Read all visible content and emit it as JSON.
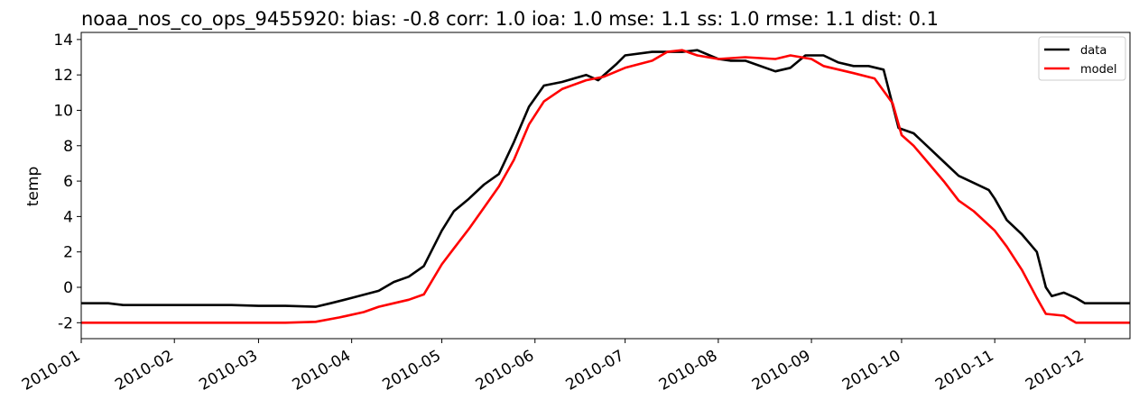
{
  "chart_data": {
    "type": "line",
    "title": "noaa_nos_co_ops_9455920: bias: -0.8  corr: 1.0  ioa: 1.0  mse: 1.1  ss: 1.0  rmse: 1.1  dist: 0.1",
    "xlabel": "",
    "ylabel": "temp",
    "xlim": [
      "2010-01-01",
      "2010-12-16"
    ],
    "ylim": [
      -2.9,
      14.4
    ],
    "yticks": [
      -2,
      0,
      2,
      4,
      6,
      8,
      10,
      12,
      14
    ],
    "xticks": [
      "2010-01",
      "2010-02",
      "2010-03",
      "2010-04",
      "2010-05",
      "2010-06",
      "2010-07",
      "2010-08",
      "2010-09",
      "2010-10",
      "2010-11",
      "2010-12"
    ],
    "grid": false,
    "legend": {
      "position": "top-right",
      "entries": [
        "data",
        "model"
      ]
    },
    "series": [
      {
        "name": "data",
        "color": "#000000",
        "points": [
          [
            "2010-01-01",
            -0.9
          ],
          [
            "2010-01-10",
            -0.9
          ],
          [
            "2010-01-15",
            -1.0
          ],
          [
            "2010-02-01",
            -1.0
          ],
          [
            "2010-02-20",
            -1.0
          ],
          [
            "2010-03-01",
            -1.05
          ],
          [
            "2010-03-10",
            -1.05
          ],
          [
            "2010-03-20",
            -1.1
          ],
          [
            "2010-03-25",
            -0.9
          ],
          [
            "2010-04-01",
            -0.6
          ],
          [
            "2010-04-10",
            -0.2
          ],
          [
            "2010-04-15",
            0.3
          ],
          [
            "2010-04-20",
            0.6
          ],
          [
            "2010-04-25",
            1.2
          ],
          [
            "2010-05-01",
            3.2
          ],
          [
            "2010-05-05",
            4.3
          ],
          [
            "2010-05-10",
            5.0
          ],
          [
            "2010-05-15",
            5.8
          ],
          [
            "2010-05-20",
            6.4
          ],
          [
            "2010-05-25",
            8.2
          ],
          [
            "2010-05-30",
            10.2
          ],
          [
            "2010-06-04",
            11.4
          ],
          [
            "2010-06-10",
            11.6
          ],
          [
            "2010-06-18",
            12.0
          ],
          [
            "2010-06-22",
            11.7
          ],
          [
            "2010-06-28",
            12.6
          ],
          [
            "2010-07-01",
            13.1
          ],
          [
            "2010-07-10",
            13.3
          ],
          [
            "2010-07-20",
            13.3
          ],
          [
            "2010-07-25",
            13.4
          ],
          [
            "2010-08-01",
            12.9
          ],
          [
            "2010-08-05",
            12.8
          ],
          [
            "2010-08-10",
            12.8
          ],
          [
            "2010-08-20",
            12.2
          ],
          [
            "2010-08-25",
            12.4
          ],
          [
            "2010-08-30",
            13.1
          ],
          [
            "2010-09-05",
            13.1
          ],
          [
            "2010-09-10",
            12.7
          ],
          [
            "2010-09-15",
            12.5
          ],
          [
            "2010-09-20",
            12.5
          ],
          [
            "2010-09-25",
            12.3
          ],
          [
            "2010-09-30",
            9.0
          ],
          [
            "2010-10-05",
            8.7
          ],
          [
            "2010-10-10",
            7.9
          ],
          [
            "2010-10-15",
            7.1
          ],
          [
            "2010-10-20",
            6.3
          ],
          [
            "2010-10-25",
            5.9
          ],
          [
            "2010-10-30",
            5.5
          ],
          [
            "2010-11-01",
            5.0
          ],
          [
            "2010-11-05",
            3.8
          ],
          [
            "2010-11-10",
            3.0
          ],
          [
            "2010-11-15",
            2.0
          ],
          [
            "2010-11-18",
            0.0
          ],
          [
            "2010-11-20",
            -0.5
          ],
          [
            "2010-11-24",
            -0.3
          ],
          [
            "2010-11-28",
            -0.6
          ],
          [
            "2010-12-01",
            -0.9
          ],
          [
            "2010-12-16",
            -0.9
          ]
        ]
      },
      {
        "name": "model",
        "color": "#ff0000",
        "points": [
          [
            "2010-01-01",
            -2.0
          ],
          [
            "2010-02-01",
            -2.0
          ],
          [
            "2010-03-01",
            -2.0
          ],
          [
            "2010-03-10",
            -2.0
          ],
          [
            "2010-03-20",
            -1.95
          ],
          [
            "2010-03-28",
            -1.7
          ],
          [
            "2010-04-05",
            -1.4
          ],
          [
            "2010-04-10",
            -1.1
          ],
          [
            "2010-04-15",
            -0.9
          ],
          [
            "2010-04-20",
            -0.7
          ],
          [
            "2010-04-25",
            -0.4
          ],
          [
            "2010-05-01",
            1.3
          ],
          [
            "2010-05-05",
            2.2
          ],
          [
            "2010-05-10",
            3.3
          ],
          [
            "2010-05-15",
            4.5
          ],
          [
            "2010-05-20",
            5.7
          ],
          [
            "2010-05-25",
            7.2
          ],
          [
            "2010-05-30",
            9.2
          ],
          [
            "2010-06-04",
            10.5
          ],
          [
            "2010-06-10",
            11.2
          ],
          [
            "2010-06-18",
            11.7
          ],
          [
            "2010-06-24",
            11.9
          ],
          [
            "2010-07-01",
            12.4
          ],
          [
            "2010-07-10",
            12.8
          ],
          [
            "2010-07-15",
            13.3
          ],
          [
            "2010-07-20",
            13.4
          ],
          [
            "2010-07-25",
            13.1
          ],
          [
            "2010-08-01",
            12.9
          ],
          [
            "2010-08-10",
            13.0
          ],
          [
            "2010-08-20",
            12.9
          ],
          [
            "2010-08-25",
            13.1
          ],
          [
            "2010-09-01",
            12.9
          ],
          [
            "2010-09-05",
            12.5
          ],
          [
            "2010-09-15",
            12.1
          ],
          [
            "2010-09-22",
            11.8
          ],
          [
            "2010-09-28",
            10.4
          ],
          [
            "2010-10-01",
            8.6
          ],
          [
            "2010-10-05",
            8.0
          ],
          [
            "2010-10-10",
            7.0
          ],
          [
            "2010-10-15",
            6.0
          ],
          [
            "2010-10-20",
            4.9
          ],
          [
            "2010-10-25",
            4.3
          ],
          [
            "2010-11-01",
            3.2
          ],
          [
            "2010-11-05",
            2.3
          ],
          [
            "2010-11-10",
            1.0
          ],
          [
            "2010-11-15",
            -0.6
          ],
          [
            "2010-11-18",
            -1.5
          ],
          [
            "2010-11-24",
            -1.6
          ],
          [
            "2010-11-28",
            -2.0
          ],
          [
            "2010-12-16",
            -2.0
          ]
        ]
      }
    ]
  }
}
